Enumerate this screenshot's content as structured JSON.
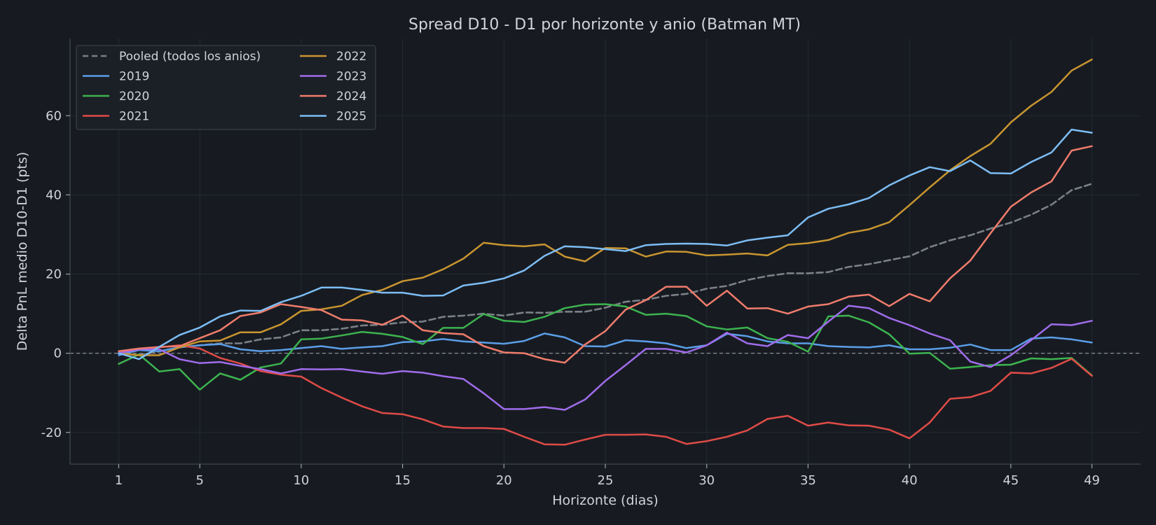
{
  "chart_data": {
    "type": "line",
    "title": "Spread D10 - D1 por horizonte y anio (Batman MT)",
    "xlabel": "Horizonte (dias)",
    "ylabel": "Delta PnL medio D10-D1 (pts)",
    "xlim": [
      -1.4,
      51.4
    ],
    "ylim": [
      -28,
      79.5
    ],
    "xticks": [
      1,
      5,
      10,
      15,
      20,
      25,
      30,
      35,
      40,
      45,
      49
    ],
    "yticks": [
      -20,
      0,
      20,
      40,
      60
    ],
    "ytick_labels": [
      "-20",
      "0",
      "20",
      "40",
      "60"
    ],
    "grid": true,
    "legend_position": "top-left",
    "legend_columns": 2,
    "reference_line": {
      "y": 0,
      "style": "dashed"
    },
    "background": "#171b21",
    "x": [
      1,
      2,
      3,
      4,
      5,
      6,
      7,
      8,
      9,
      10,
      11,
      12,
      13,
      14,
      15,
      16,
      17,
      18,
      19,
      20,
      21,
      22,
      23,
      24,
      25,
      26,
      27,
      28,
      29,
      30,
      31,
      32,
      33,
      34,
      35,
      36,
      37,
      38,
      39,
      40,
      41,
      42,
      43,
      44,
      45,
      46,
      47,
      48,
      49
    ],
    "series": [
      {
        "name": "Pooled (todos los anios)",
        "color": "#7b7f86",
        "dashed": true,
        "values": [
          0,
          -0.5,
          0.5,
          1.5,
          2,
          2.5,
          2.5,
          3.5,
          4,
          5.8,
          5.8,
          6.2,
          7,
          7.2,
          7.8,
          8,
          9.2,
          9.5,
          10,
          9.5,
          10.3,
          10.2,
          10.5,
          10.5,
          11.5,
          13,
          13.5,
          14.5,
          15,
          16.3,
          17,
          18.5,
          19.5,
          20.2,
          20.2,
          20.5,
          21.8,
          22.5,
          23.5,
          24.5,
          26.8,
          28.5,
          29.8,
          31.5,
          33,
          35,
          37.5,
          41.2,
          42.8
        ]
      },
      {
        "name": "2019",
        "color": "#5b9ee8",
        "values": [
          -0.5,
          0.8,
          0.5,
          1.5,
          2,
          2.3,
          1,
          0.5,
          0.8,
          1.3,
          1.8,
          1.1,
          1.5,
          1.8,
          2.8,
          3,
          3.6,
          3,
          2.7,
          2.4,
          3.1,
          5,
          4,
          1.8,
          1.7,
          3.3,
          3,
          2.5,
          1.3,
          2,
          4.9,
          4.3,
          3,
          2.5,
          2.5,
          1.8,
          1.6,
          1.5,
          2,
          1,
          1,
          1.4,
          2.2,
          0.8,
          0.8,
          3.7,
          4,
          3.5,
          2.7
        ]
      },
      {
        "name": "2020",
        "color": "#3db34f",
        "values": [
          -2.7,
          -0.3,
          -4.6,
          -4,
          -9.2,
          -5.1,
          -6.7,
          -3.6,
          -2.6,
          3.5,
          3.7,
          4.5,
          5.4,
          4.9,
          4.1,
          2.3,
          6.4,
          6.4,
          9.9,
          8.2,
          7.9,
          9.2,
          11.4,
          12.3,
          12.4,
          11.8,
          9.7,
          10,
          9.4,
          6.8,
          6,
          6.5,
          3.8,
          2.9,
          0.4,
          9.3,
          9.5,
          7.8,
          4.8,
          -0.1,
          0.1,
          -3.9,
          -3.5,
          -3,
          -2.9,
          -1.3,
          -1.5,
          -1.2,
          -5.6
        ]
      },
      {
        "name": "2021",
        "color": "#e04b47",
        "values": [
          0.5,
          1,
          1.5,
          2,
          1.2,
          -1.2,
          -2.6,
          -4.5,
          -5.4,
          -5.9,
          -8.8,
          -11.2,
          -13.4,
          -15.1,
          -15.4,
          -16.7,
          -18.5,
          -18.9,
          -18.9,
          -19.1,
          -21.1,
          -23,
          -23.1,
          -21.8,
          -20.6,
          -20.6,
          -20.5,
          -21.1,
          -22.9,
          -22.2,
          -21.1,
          -19.5,
          -16.6,
          -15.8,
          -18.3,
          -17.5,
          -18.2,
          -18.3,
          -19.3,
          -21.5,
          -17.5,
          -11.5,
          -11.1,
          -9.5,
          -4.9,
          -5.1,
          -3.7,
          -1.4,
          -5.7
        ]
      },
      {
        "name": "2022",
        "color": "#c99530",
        "values": [
          0,
          -0.5,
          -0.5,
          1.5,
          3,
          3.2,
          5.3,
          5.3,
          7.3,
          10.7,
          11.1,
          12,
          14.7,
          16,
          18.2,
          19.1,
          21.2,
          23.9,
          27.9,
          27.3,
          27,
          27.5,
          24.4,
          23.2,
          26.6,
          26.5,
          24.4,
          25.7,
          25.6,
          24.7,
          24.9,
          25.2,
          24.7,
          27.4,
          27.8,
          28.6,
          30.4,
          31.3,
          33.1,
          37.4,
          41.9,
          46.2,
          49.8,
          52.9,
          58.3,
          62.5,
          66,
          71.4,
          74.2
        ]
      },
      {
        "name": "2023",
        "color": "#a06ceb",
        "values": [
          0,
          1,
          1,
          -1.5,
          -2.5,
          -2.2,
          -3.2,
          -4,
          -5.1,
          -4,
          -4.1,
          -4,
          -4.6,
          -5.2,
          -4.5,
          -4.9,
          -5.8,
          -6.5,
          -10.1,
          -14.1,
          -14.1,
          -13.6,
          -14.3,
          -11.7,
          -7,
          -3,
          1.1,
          1.1,
          0.2,
          2,
          5.2,
          2.5,
          1.8,
          4.6,
          3.8,
          8,
          12,
          11.4,
          8.9,
          7.1,
          5,
          3.3,
          -2.1,
          -3.5,
          -0.5,
          3.3,
          7.3,
          7.1,
          8.2
        ]
      },
      {
        "name": "2024",
        "color": "#f07c6c",
        "values": [
          0.5,
          1.2,
          1.6,
          1.8,
          3.8,
          5.8,
          9.4,
          10.3,
          12.4,
          11.7,
          10.9,
          8.5,
          8.3,
          7.2,
          9.5,
          5.8,
          5.1,
          4.8,
          1.8,
          0.2,
          0,
          -1.5,
          -2.4,
          2.2,
          5.6,
          11,
          13.4,
          16.8,
          16.8,
          12,
          15.8,
          11.3,
          11.4,
          10,
          11.8,
          12.4,
          14.3,
          14.8,
          11.9,
          15,
          13.1,
          18.9,
          23.4,
          30.3,
          37,
          40.6,
          43.4,
          51.2,
          52.3
        ]
      },
      {
        "name": "2025",
        "color": "#7dbdf5",
        "values": [
          0,
          -1.5,
          1.6,
          4.6,
          6.5,
          9.3,
          10.8,
          10.7,
          12.9,
          14.5,
          16.6,
          16.6,
          16,
          15.3,
          15.3,
          14.5,
          14.6,
          17.1,
          17.8,
          18.9,
          20.9,
          24.6,
          27,
          26.8,
          26.3,
          25.8,
          27.3,
          27.6,
          27.7,
          27.6,
          27.2,
          28.5,
          29.2,
          29.8,
          34.3,
          36.5,
          37.6,
          39.2,
          42.4,
          44.9,
          47,
          46,
          48.7,
          45.5,
          45.4,
          48.3,
          50.7,
          56.5,
          55.7
        ]
      }
    ]
  }
}
